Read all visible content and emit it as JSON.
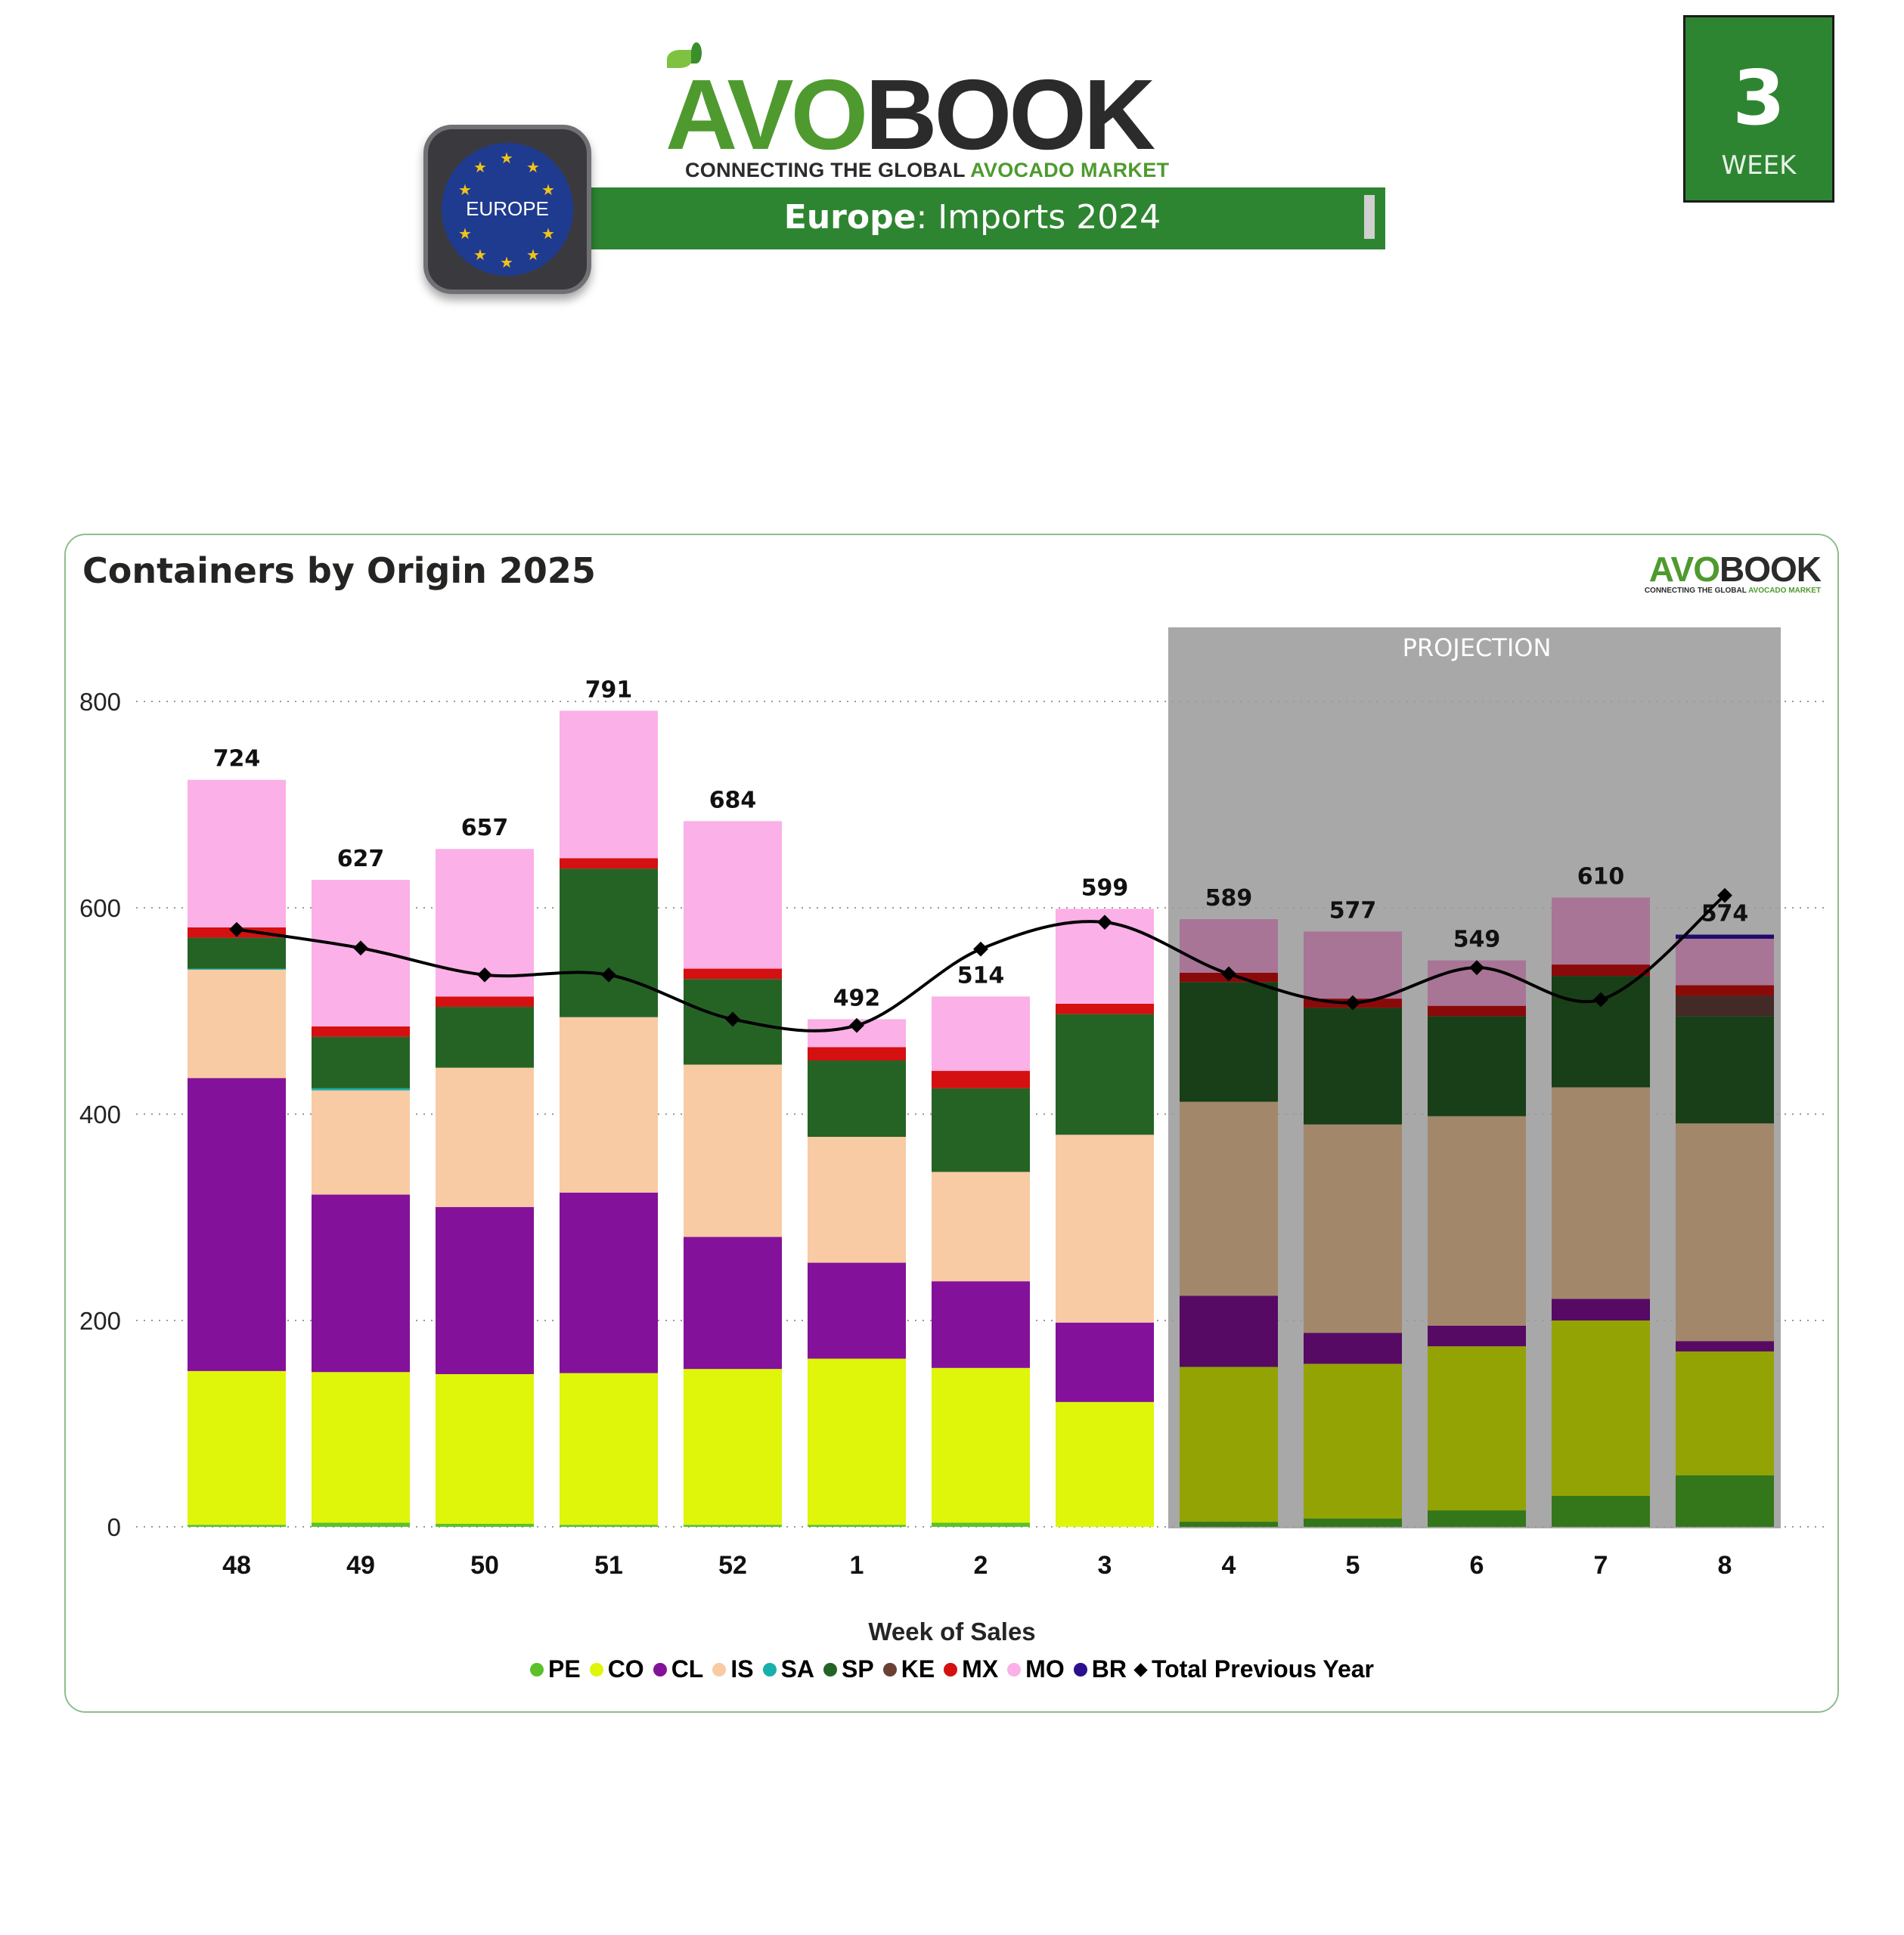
{
  "header": {
    "logo": {
      "avo": "AVO",
      "book": "BOOK",
      "tagline_dark": "CONNECTING THE GLOBAL",
      "tagline_green": "AVOCADO MARKET"
    },
    "region_badge": "EUROPE",
    "title_bold": "Europe",
    "title_rest": ": Imports 2024",
    "week": {
      "number": "3",
      "label": "WEEK"
    }
  },
  "panel": {
    "mini_logo": {
      "avo": "AVO",
      "book": "BOOK",
      "tagline_dark": "CONNECTING THE GLOBAL",
      "tagline_green": "AVOCADO MARKET"
    }
  },
  "colors": {
    "brand_green": "#2e8531",
    "projection_bg": "#a8a8a8"
  },
  "chart_data": {
    "type": "bar",
    "stacked": true,
    "title": "Containers by Origin 2025",
    "xlabel": "Week of Sales",
    "ylabel": "",
    "ylim": [
      0,
      800
    ],
    "yticks": [
      0,
      200,
      400,
      600,
      800
    ],
    "grid": true,
    "legend_position": "bottom",
    "projection_label": "PROJECTION",
    "projection_categories": [
      "4",
      "5",
      "6",
      "7",
      "8"
    ],
    "categories": [
      "48",
      "49",
      "50",
      "51",
      "52",
      "1",
      "2",
      "3",
      "4",
      "5",
      "6",
      "7",
      "8"
    ],
    "totals": [
      724,
      627,
      657,
      791,
      684,
      492,
      514,
      599,
      589,
      577,
      549,
      610,
      574
    ],
    "series": [
      {
        "name": "PE",
        "color": "#5bc12a",
        "projection_color": "#34761a",
        "values": [
          2,
          4,
          3,
          2,
          2,
          2,
          4,
          0,
          5,
          8,
          16,
          30,
          50
        ]
      },
      {
        "name": "CO",
        "color": "#dff50a",
        "projection_color": "#93a303",
        "values": [
          149,
          146,
          145,
          147,
          151,
          161,
          150,
          121,
          150,
          150,
          159,
          170,
          120
        ]
      },
      {
        "name": "CL",
        "color": "#84119a",
        "projection_color": "#560a64",
        "values": [
          284,
          172,
          162,
          175,
          128,
          93,
          84,
          77,
          69,
          30,
          20,
          21,
          10
        ]
      },
      {
        "name": "IS",
        "color": "#f8cba4",
        "projection_color": "#a3876b",
        "values": [
          105,
          101,
          135,
          170,
          167,
          122,
          106,
          182,
          188,
          202,
          203,
          205,
          211
        ]
      },
      {
        "name": "SA",
        "color": "#17b0aa",
        "projection_color": "#0f7370",
        "values": [
          1,
          2,
          0,
          0,
          0,
          0,
          0,
          0,
          0,
          0,
          0,
          0,
          0
        ]
      },
      {
        "name": "SP",
        "color": "#256325",
        "projection_color": "#183f17",
        "values": [
          30,
          50,
          59,
          144,
          83,
          74,
          81,
          117,
          116,
          113,
          97,
          108,
          104
        ]
      },
      {
        "name": "KE",
        "color": "#6b3f34",
        "projection_color": "#442a26",
        "values": [
          0,
          0,
          0,
          0,
          0,
          0,
          0,
          0,
          0,
          0,
          0,
          0,
          20
        ]
      },
      {
        "name": "MX",
        "color": "#d41010",
        "projection_color": "#8a0a0a",
        "values": [
          10,
          10,
          10,
          10,
          10,
          13,
          17,
          10,
          9,
          9,
          10,
          11,
          10
        ]
      },
      {
        "name": "MO",
        "color": "#fbb0e7",
        "projection_color": "#a87597",
        "values": [
          143,
          142,
          143,
          143,
          143,
          27,
          72,
          92,
          52,
          65,
          44,
          65,
          45
        ]
      },
      {
        "name": "BR",
        "color": "#2a0f8f",
        "projection_color": "#200a6b",
        "values": [
          0,
          0,
          0,
          0,
          0,
          0,
          0,
          0,
          0,
          0,
          0,
          0,
          4
        ]
      }
    ],
    "line_series": {
      "name": "Total Previous Year",
      "color": "#000000",
      "values": [
        579,
        561,
        535,
        535,
        492,
        486,
        560,
        586,
        536,
        508,
        542,
        511,
        612
      ]
    }
  }
}
